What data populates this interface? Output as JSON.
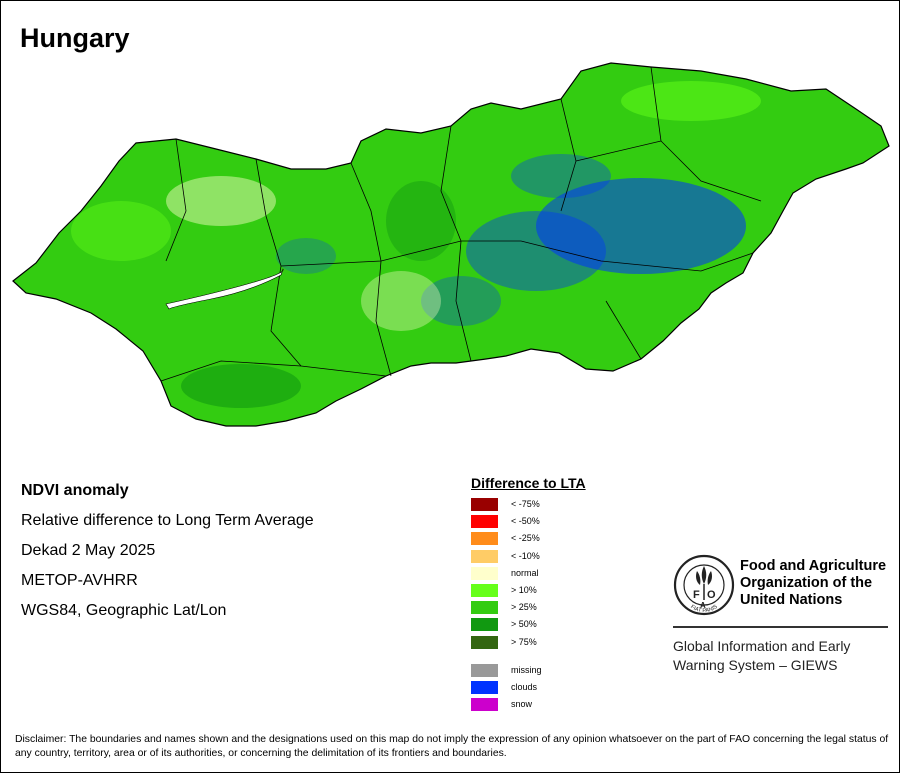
{
  "map": {
    "title": "Hungary",
    "theme_colors": {
      "outside_country": "#ffffff",
      "dominant_fill": "#33cc11",
      "boundary_line": "#000000",
      "lake_fill": "#ffffff"
    }
  },
  "info": {
    "product": "NDVI anomaly",
    "description": "Relative difference to Long Term Average",
    "period": "Dekad 2 May 2025",
    "sensor": "METOP-AVHRR",
    "projection": "WGS84, Geographic Lat/Lon"
  },
  "legend": {
    "title": "Difference to LTA",
    "classes": [
      {
        "label": "< -75%",
        "color": "#990000"
      },
      {
        "label": "< -50%",
        "color": "#ff0000"
      },
      {
        "label": "< -25%",
        "color": "#ff8c1a"
      },
      {
        "label": "< -10%",
        "color": "#ffcc66"
      },
      {
        "label": "normal",
        "color": "#ffffcc"
      },
      {
        "label": "> 10%",
        "color": "#66ff1a"
      },
      {
        "label": "> 25%",
        "color": "#33cc11"
      },
      {
        "label": "> 50%",
        "color": "#119911"
      },
      {
        "label": "> 75%",
        "color": "#336611"
      }
    ],
    "other": [
      {
        "label": "missing",
        "color": "#999999"
      },
      {
        "label": "clouds",
        "color": "#0033ff"
      },
      {
        "label": "snow",
        "color": "#cc00cc"
      }
    ]
  },
  "organization": {
    "logo_icon": "fao-emblem-icon",
    "logo_text": "FIAT PANIS",
    "name_lines": [
      "Food and Agriculture",
      "Organization of the",
      "United Nations"
    ],
    "system_lines": [
      "Global Information and Early",
      "Warning System – GIEWS"
    ]
  },
  "disclaimer": "Disclaimer: The boundaries and names shown and the designations used on this map do not imply the expression of any opinion whatsoever on the part of FAO concerning the legal status of any country, territory, area or of its authorities, or concerning the delimitation of its frontiers and boundaries."
}
